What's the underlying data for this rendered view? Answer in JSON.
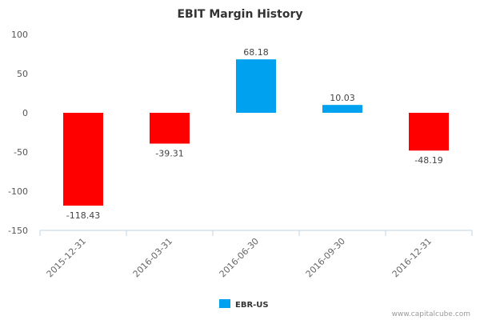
{
  "chart_data": {
    "type": "bar",
    "title": "EBIT Margin History",
    "categories": [
      "2015-12-31",
      "2016-03-31",
      "2016-06-30",
      "2016-09-30",
      "2016-12-31"
    ],
    "values": [
      -118.43,
      -39.31,
      68.18,
      10.03,
      -48.19
    ],
    "value_labels": [
      "-118.43",
      "-39.31",
      "68.18",
      "10.03",
      "-48.19"
    ],
    "ylim": [
      -150,
      100
    ],
    "yticks": [
      100,
      50,
      0,
      -50,
      -100,
      -150
    ],
    "ytick_labels": [
      "100",
      "50",
      "0",
      "-50",
      "-100",
      "-150"
    ],
    "xlabel": "",
    "ylabel": "",
    "legend": {
      "label": "EBR-US",
      "placement": "bottom-center"
    },
    "colors": {
      "positive": "#00a2ef",
      "negative": "#ff0000",
      "legend": "#00a2ef"
    }
  },
  "credit": "www.capitalcube.com"
}
